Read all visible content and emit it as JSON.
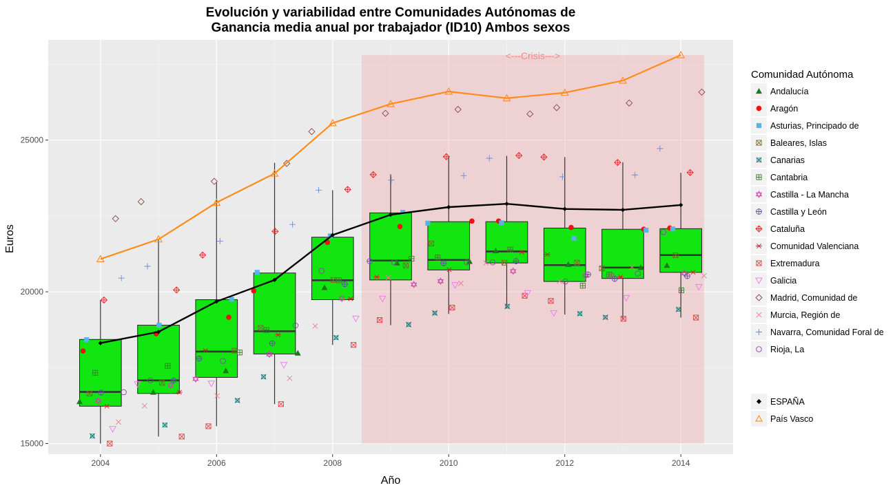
{
  "chart_data": {
    "type": "boxplot",
    "title_line1": "Evolución y variabilidad entre Comunidades Autónomas de",
    "title_line2": "Ganancia media anual por trabajador (ID10) Ambos sexos",
    "xlabel": "Año",
    "ylabel": "Euros",
    "xlim": [
      2003.1,
      2014.9
    ],
    "ylim": [
      14650,
      28300
    ],
    "x_ticks": [
      2004,
      2006,
      2008,
      2010,
      2012,
      2014
    ],
    "y_ticks": [
      15000,
      20000,
      25000
    ],
    "grid": true,
    "legend_position": "right",
    "crisis_region": {
      "x_start": 2008.5,
      "x_end": 2014.4,
      "label": "<---Crisis--->",
      "color": "#f4a0a6"
    },
    "box_color": "#11e611",
    "boxes": [
      {
        "year": 2004,
        "q1": 16230,
        "median": 16700,
        "q3": 18430,
        "min": 15000,
        "max": 19730
      },
      {
        "year": 2005,
        "q1": 16650,
        "median": 17080,
        "q3": 18900,
        "min": 15230,
        "max": 21700
      },
      {
        "year": 2006,
        "q1": 17180,
        "median": 18030,
        "q3": 19740,
        "min": 15570,
        "max": 23600
      },
      {
        "year": 2007,
        "q1": 17950,
        "median": 18700,
        "q3": 20620,
        "min": 16300,
        "max": 24250
      },
      {
        "year": 2008,
        "q1": 19740,
        "median": 20380,
        "q3": 21800,
        "min": 18250,
        "max": 23350
      },
      {
        "year": 2009,
        "q1": 20390,
        "median": 21030,
        "q3": 22600,
        "min": 18900,
        "max": 23870
      },
      {
        "year": 2010,
        "q1": 20720,
        "median": 21050,
        "q3": 22310,
        "min": 19270,
        "max": 24470
      },
      {
        "year": 2011,
        "q1": 20950,
        "median": 21330,
        "q3": 22310,
        "min": 19460,
        "max": 24480
      },
      {
        "year": 2012,
        "q1": 20340,
        "median": 20880,
        "q3": 22100,
        "min": 19250,
        "max": 24440
      },
      {
        "year": 2013,
        "q1": 20440,
        "median": 20800,
        "q3": 22060,
        "min": 19070,
        "max": 24270
      },
      {
        "year": 2014,
        "q1": 20640,
        "median": 21210,
        "q3": 22080,
        "min": 19150,
        "max": 23920
      }
    ],
    "reference_lines": [
      {
        "name": "ESPAÑA",
        "color": "#000000",
        "shape": "diamond-filled",
        "x": [
          2004,
          2005,
          2006,
          2007,
          2008,
          2009,
          2010,
          2011,
          2012,
          2013,
          2014
        ],
        "y": [
          18310,
          18680,
          19680,
          20390,
          21870,
          22540,
          22790,
          22900,
          22730,
          22700,
          22860
        ]
      },
      {
        "name": "País Vasco",
        "color": "#ff8c1a",
        "shape": "triangle-open",
        "x": [
          2004,
          2005,
          2006,
          2007,
          2008,
          2009,
          2010,
          2011,
          2012,
          2013,
          2014
        ],
        "y": [
          21080,
          21730,
          22940,
          23900,
          25560,
          26190,
          26600,
          26380,
          26560,
          26960,
          27800
        ]
      }
    ],
    "legend_title": "Comunidad Autónoma",
    "series": [
      {
        "name": "Andalucía",
        "color": "#1a7a1a",
        "shape": "triangle-filled",
        "x": [
          2004,
          2005,
          2006,
          2007,
          2008,
          2009,
          2010,
          2011,
          2012,
          2013,
          2014
        ],
        "y": [
          16380,
          16690,
          17400,
          17980,
          20140,
          20950,
          21000,
          21350,
          20900,
          20800,
          20870
        ]
      },
      {
        "name": "Aragón",
        "color": "#ee1111",
        "shape": "circle-filled",
        "x": [
          2004,
          2005,
          2006,
          2007,
          2008,
          2009,
          2010,
          2011,
          2012,
          2013,
          2014
        ],
        "y": [
          18050,
          18620,
          19160,
          20030,
          21630,
          22150,
          22330,
          22330,
          22120,
          22060,
          22100
        ]
      },
      {
        "name": "Asturias, Principado de",
        "color": "#56b4e9",
        "shape": "square-filled",
        "x": [
          2004,
          2005,
          2006,
          2007,
          2008,
          2009,
          2010,
          2011,
          2012,
          2013,
          2014
        ],
        "y": [
          18420,
          18900,
          19750,
          20640,
          21840,
          22620,
          22260,
          22270,
          21760,
          22030,
          22070
        ]
      },
      {
        "name": "Baleares, Islas",
        "color": "#7a6a2a",
        "shape": "square-x",
        "x": [
          2004,
          2005,
          2006,
          2007,
          2008,
          2009,
          2010,
          2011,
          2012,
          2013,
          2014
        ],
        "y": [
          16650,
          17000,
          18060,
          18810,
          20390,
          20870,
          21590,
          20960,
          20960,
          20770,
          21200
        ]
      },
      {
        "name": "Canarias",
        "color": "#1a7a7a",
        "shape": "square-cross-x",
        "x": [
          2004,
          2005,
          2006,
          2007,
          2008,
          2009,
          2010,
          2011,
          2012,
          2013,
          2014
        ],
        "y": [
          15250,
          15610,
          16420,
          17200,
          18490,
          18920,
          19300,
          19520,
          19280,
          19160,
          19420
        ]
      },
      {
        "name": "Cantabria",
        "color": "#3a7a2a",
        "shape": "square-plus",
        "x": [
          2004,
          2005,
          2006,
          2007,
          2008,
          2009,
          2010,
          2011,
          2012,
          2013,
          2014
        ],
        "y": [
          17330,
          17560,
          18000,
          18740,
          20380,
          21090,
          21130,
          21390,
          20200,
          20570,
          20050
        ]
      },
      {
        "name": "Castilla - La Mancha",
        "color": "#cc44aa",
        "shape": "star-david",
        "x": [
          2004,
          2005,
          2006,
          2007,
          2008,
          2009,
          2010,
          2011,
          2012,
          2013,
          2014
        ],
        "y": [
          16400,
          16920,
          17130,
          17940,
          19780,
          20240,
          20350,
          20680,
          20530,
          20550,
          20610
        ]
      },
      {
        "name": "Castilla y León",
        "color": "#6a4aaa",
        "shape": "circle-plus",
        "x": [
          2004,
          2005,
          2006,
          2007,
          2008,
          2009,
          2010,
          2011,
          2012,
          2013,
          2014
        ],
        "y": [
          16680,
          17080,
          17800,
          18300,
          20250,
          21010,
          20940,
          21010,
          20570,
          20430,
          20520
        ]
      },
      {
        "name": "Cataluña",
        "color": "#ee2222",
        "shape": "diamond-plus",
        "x": [
          2004,
          2005,
          2006,
          2007,
          2008,
          2009,
          2010,
          2011,
          2012,
          2013,
          2014
        ],
        "y": [
          19730,
          20060,
          21210,
          21990,
          23370,
          23860,
          24450,
          24490,
          24440,
          24260,
          23930
        ]
      },
      {
        "name": "Comunidad Valenciana",
        "color": "#cc2222",
        "shape": "asterisk",
        "x": [
          2004,
          2005,
          2006,
          2007,
          2008,
          2009,
          2010,
          2011,
          2012,
          2013,
          2014
        ],
        "y": [
          16230,
          16690,
          18070,
          18580,
          19770,
          20490,
          20730,
          21300,
          21230,
          20490,
          20640
        ]
      },
      {
        "name": "Extremadura",
        "color": "#dd4444",
        "shape": "square-x",
        "x": [
          2004,
          2005,
          2006,
          2007,
          2008,
          2009,
          2010,
          2011,
          2012,
          2013,
          2014
        ],
        "y": [
          15000,
          15230,
          15570,
          16300,
          18250,
          19070,
          19480,
          19870,
          19700,
          19110,
          19150
        ]
      },
      {
        "name": "Galicia",
        "color": "#ee77ee",
        "shape": "triangle-down-open",
        "x": [
          2004,
          2005,
          2006,
          2007,
          2008,
          2009,
          2010,
          2011,
          2012,
          2013,
          2014
        ],
        "y": [
          15480,
          16960,
          16980,
          17590,
          19120,
          19770,
          20220,
          19960,
          19300,
          19800,
          20160
        ]
      },
      {
        "name": "Madrid, Comunidad de",
        "color": "#884444",
        "shape": "diamond-open",
        "x": [
          2004,
          2005,
          2006,
          2007,
          2008,
          2009,
          2010,
          2011,
          2012,
          2013,
          2014
        ],
        "y": [
          22410,
          22970,
          23640,
          24230,
          25280,
          25880,
          26010,
          25860,
          26070,
          26220,
          26580
        ]
      },
      {
        "name": "Murcia, Región de",
        "color": "#ee7799",
        "shape": "x",
        "x": [
          2004,
          2005,
          2006,
          2007,
          2008,
          2009,
          2010,
          2011,
          2012,
          2013,
          2014
        ],
        "y": [
          15710,
          16240,
          16570,
          17150,
          18870,
          20470,
          20280,
          20950,
          20350,
          20810,
          20530
        ]
      },
      {
        "name": "Navarra, Comunidad Foral de",
        "color": "#6a8acc",
        "shape": "plus",
        "x": [
          2004,
          2005,
          2006,
          2007,
          2008,
          2009,
          2010,
          2011,
          2012,
          2013,
          2014
        ],
        "y": [
          20450,
          20840,
          21670,
          22220,
          23350,
          23680,
          23830,
          24400,
          23790,
          23850,
          24720
        ]
      },
      {
        "name": "Rioja, La",
        "color": "#884499",
        "shape": "circle-open",
        "x": [
          2004,
          2005,
          2006,
          2007,
          2008,
          2009,
          2010,
          2011,
          2012,
          2013,
          2014
        ],
        "y": [
          16690,
          17080,
          17720,
          18890,
          20690,
          20970,
          20970,
          20970,
          20340,
          20600,
          21970
        ]
      }
    ]
  }
}
